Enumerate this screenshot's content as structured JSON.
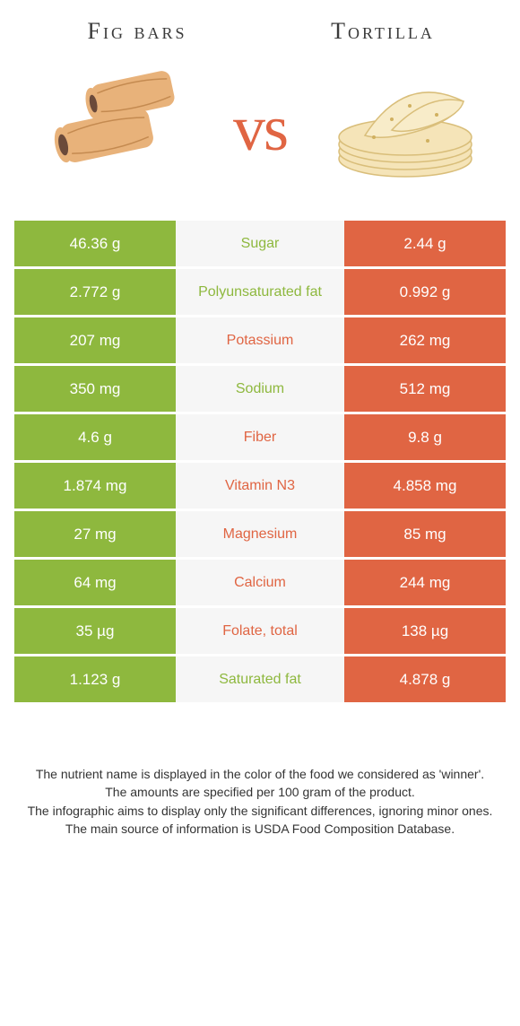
{
  "titles": {
    "left": "Fig bars",
    "right": "Tortilla"
  },
  "vs_text": "vs",
  "colors": {
    "left": "#8eb83e",
    "right": "#e06543",
    "mid_bg": "#f6f6f6",
    "text_white": "#ffffff"
  },
  "rows": [
    {
      "left": "46.36 g",
      "label": "Sugar",
      "right": "2.44 g",
      "winner": "left"
    },
    {
      "left": "2.772 g",
      "label": "Polyunsaturated fat",
      "right": "0.992 g",
      "winner": "left"
    },
    {
      "left": "207 mg",
      "label": "Potassium",
      "right": "262 mg",
      "winner": "right"
    },
    {
      "left": "350 mg",
      "label": "Sodium",
      "right": "512 mg",
      "winner": "left"
    },
    {
      "left": "4.6 g",
      "label": "Fiber",
      "right": "9.8 g",
      "winner": "right"
    },
    {
      "left": "1.874 mg",
      "label": "Vitamin N3",
      "right": "4.858 mg",
      "winner": "right"
    },
    {
      "left": "27 mg",
      "label": "Magnesium",
      "right": "85 mg",
      "winner": "right"
    },
    {
      "left": "64 mg",
      "label": "Calcium",
      "right": "244 mg",
      "winner": "right"
    },
    {
      "left": "35 µg",
      "label": "Folate, total",
      "right": "138 µg",
      "winner": "right"
    },
    {
      "left": "1.123 g",
      "label": "Saturated fat",
      "right": "4.878 g",
      "winner": "left"
    }
  ],
  "footnotes": [
    "The nutrient name is displayed in the color of the food we considered as 'winner'.",
    "The amounts are specified per 100 gram of the product.",
    "The infographic aims to display only the significant differences, ignoring minor ones.",
    "The main source of information is USDA Food Composition Database."
  ]
}
